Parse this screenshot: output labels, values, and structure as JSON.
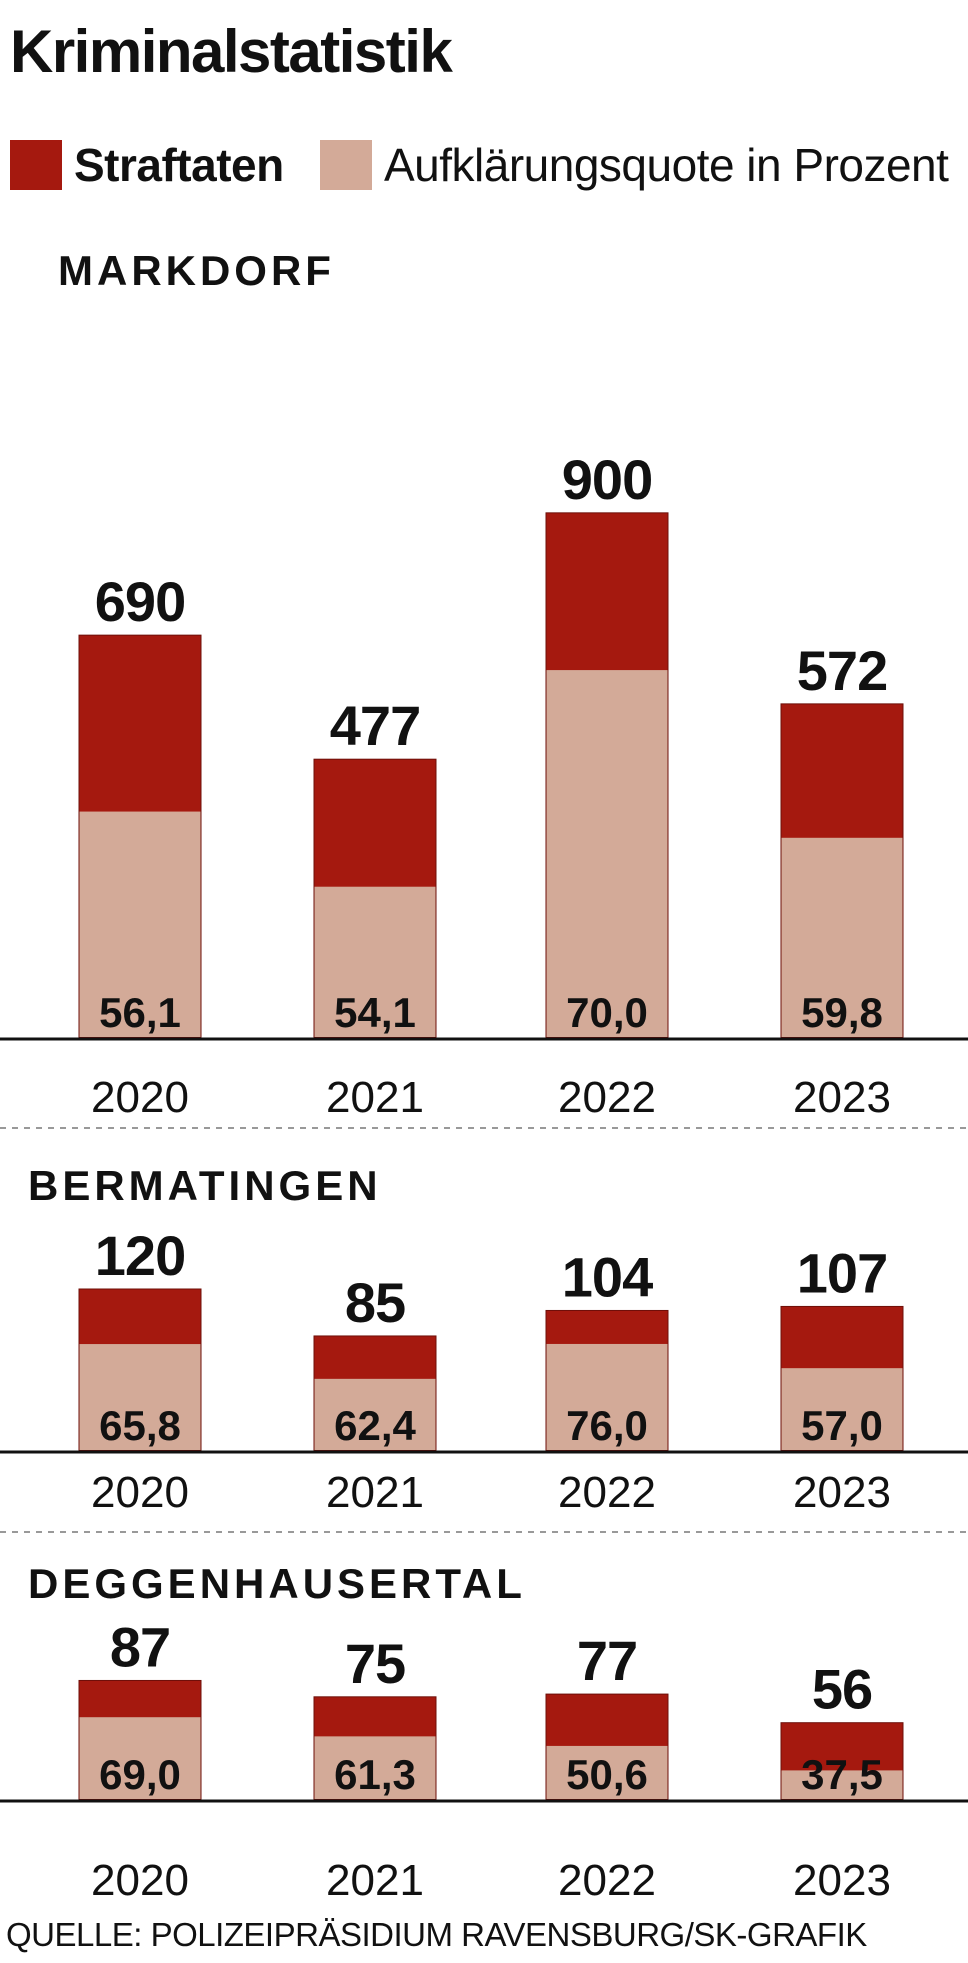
{
  "title": "Kriminalstatistik",
  "legend": [
    {
      "label": "Straftaten",
      "color": "#a5190f"
    },
    {
      "label": "Aufklärungsquote in Prozent",
      "color": "#d3aa98"
    }
  ],
  "colors": {
    "crimes": "#a5190f",
    "clearance": "#d3aa98",
    "divider": "#999999",
    "axis": "#111111"
  },
  "source": "QUELLE: POLIZEIPRÄSIDIUM RAVENSBURG/SK-GRAFIK",
  "chart_data": [
    {
      "type": "bar",
      "title": "MARKDORF",
      "categories": [
        "2020",
        "2021",
        "2022",
        "2023"
      ],
      "series": [
        {
          "name": "Straftaten",
          "values": [
            690,
            477,
            900,
            572
          ]
        },
        {
          "name": "Aufklärungsquote in Prozent",
          "values": [
            56.1,
            54.1,
            70.0,
            59.8
          ],
          "labels": [
            "56,1",
            "54,1",
            "70,0",
            "59,8"
          ]
        }
      ]
    },
    {
      "type": "bar",
      "title": "BERMATINGEN",
      "categories": [
        "2020",
        "2021",
        "2022",
        "2023"
      ],
      "series": [
        {
          "name": "Straftaten",
          "values": [
            120,
            85,
            104,
            107
          ]
        },
        {
          "name": "Aufklärungsquote in Prozent",
          "values": [
            65.8,
            62.4,
            76.0,
            57.0
          ],
          "labels": [
            "65,8",
            "62,4",
            "76,0",
            "57,0"
          ]
        }
      ]
    },
    {
      "type": "bar",
      "title": "DEGGENHAUSERTAL",
      "categories": [
        "2020",
        "2021",
        "2022",
        "2023"
      ],
      "series": [
        {
          "name": "Straftaten",
          "values": [
            87,
            75,
            77,
            56
          ]
        },
        {
          "name": "Aufklärungsquote in Prozent",
          "values": [
            69.0,
            61.3,
            50.6,
            37.5
          ],
          "labels": [
            "69,0",
            "61,3",
            "50,6",
            "37,5"
          ]
        }
      ]
    }
  ]
}
